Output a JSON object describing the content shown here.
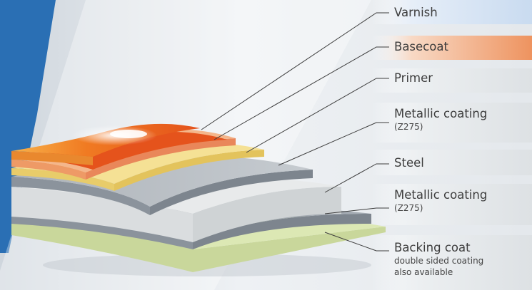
{
  "layers": [
    {
      "label": "Varnish",
      "band_color": "#dbe8f6"
    },
    {
      "label": "Basecoat",
      "band_color": "#ef9c6c"
    },
    {
      "label": "Primer"
    },
    {
      "label": "Metallic coating",
      "sub": "(Z275)"
    },
    {
      "label": "Steel"
    },
    {
      "label": "Metallic coating",
      "sub": "(Z275)"
    },
    {
      "label": "Backing coat",
      "sub_lines": [
        "double sided coating",
        "also available"
      ]
    }
  ],
  "colors": {
    "brand_blue": "#2a6fb4",
    "varnish_orange": "#f39a3a",
    "basecoat_red": "#e4521b",
    "basecoat_rim": "#f2b48a",
    "primer_yellow": "#f3dc8a",
    "metallic_grey": "#9aa2ab",
    "steel_light": "#d7dbde",
    "backing_green": "#d9e6ae"
  }
}
